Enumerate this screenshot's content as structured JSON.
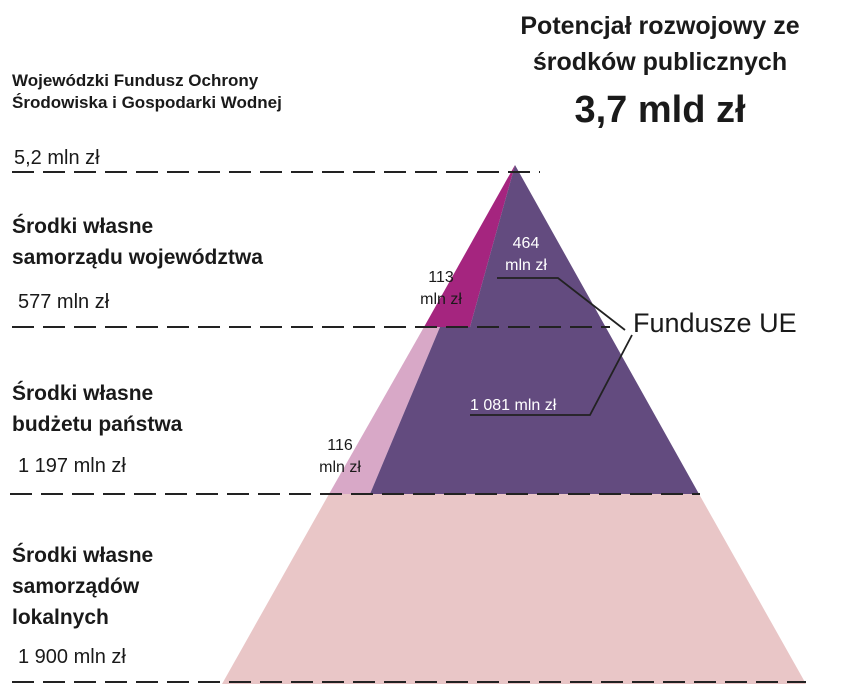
{
  "header": {
    "title_lines": [
      "Potencjał rozwojowy ze",
      "środków publicznych"
    ],
    "total": "3,7 mld zł"
  },
  "levels": [
    {
      "label_lines": [
        "Wojewódzki Fundusz Ochrony",
        "Środowiska i Gospodarki Wodnej"
      ],
      "amount": "5,2 mln zł"
    },
    {
      "label_lines": [
        "Środki własne",
        "samorządu województwa"
      ],
      "amount": "577 mln zł"
    },
    {
      "label_lines": [
        "Środki własne",
        "budżetu państwa"
      ],
      "amount": "1 197 mln zł"
    },
    {
      "label_lines": [
        "Środki własne",
        "samorządów",
        "lokalnych"
      ],
      "amount": "1 900 mln zł"
    }
  ],
  "segment_labels": [
    {
      "lines": [
        "464",
        "mln zł"
      ]
    },
    {
      "lines": [
        "113",
        "mln zł"
      ]
    },
    {
      "lines": [
        "116",
        "mln zł"
      ]
    },
    {
      "lines": [
        "1 081 mln zł"
      ]
    }
  ],
  "eu_label": "Fundusze UE"
}
